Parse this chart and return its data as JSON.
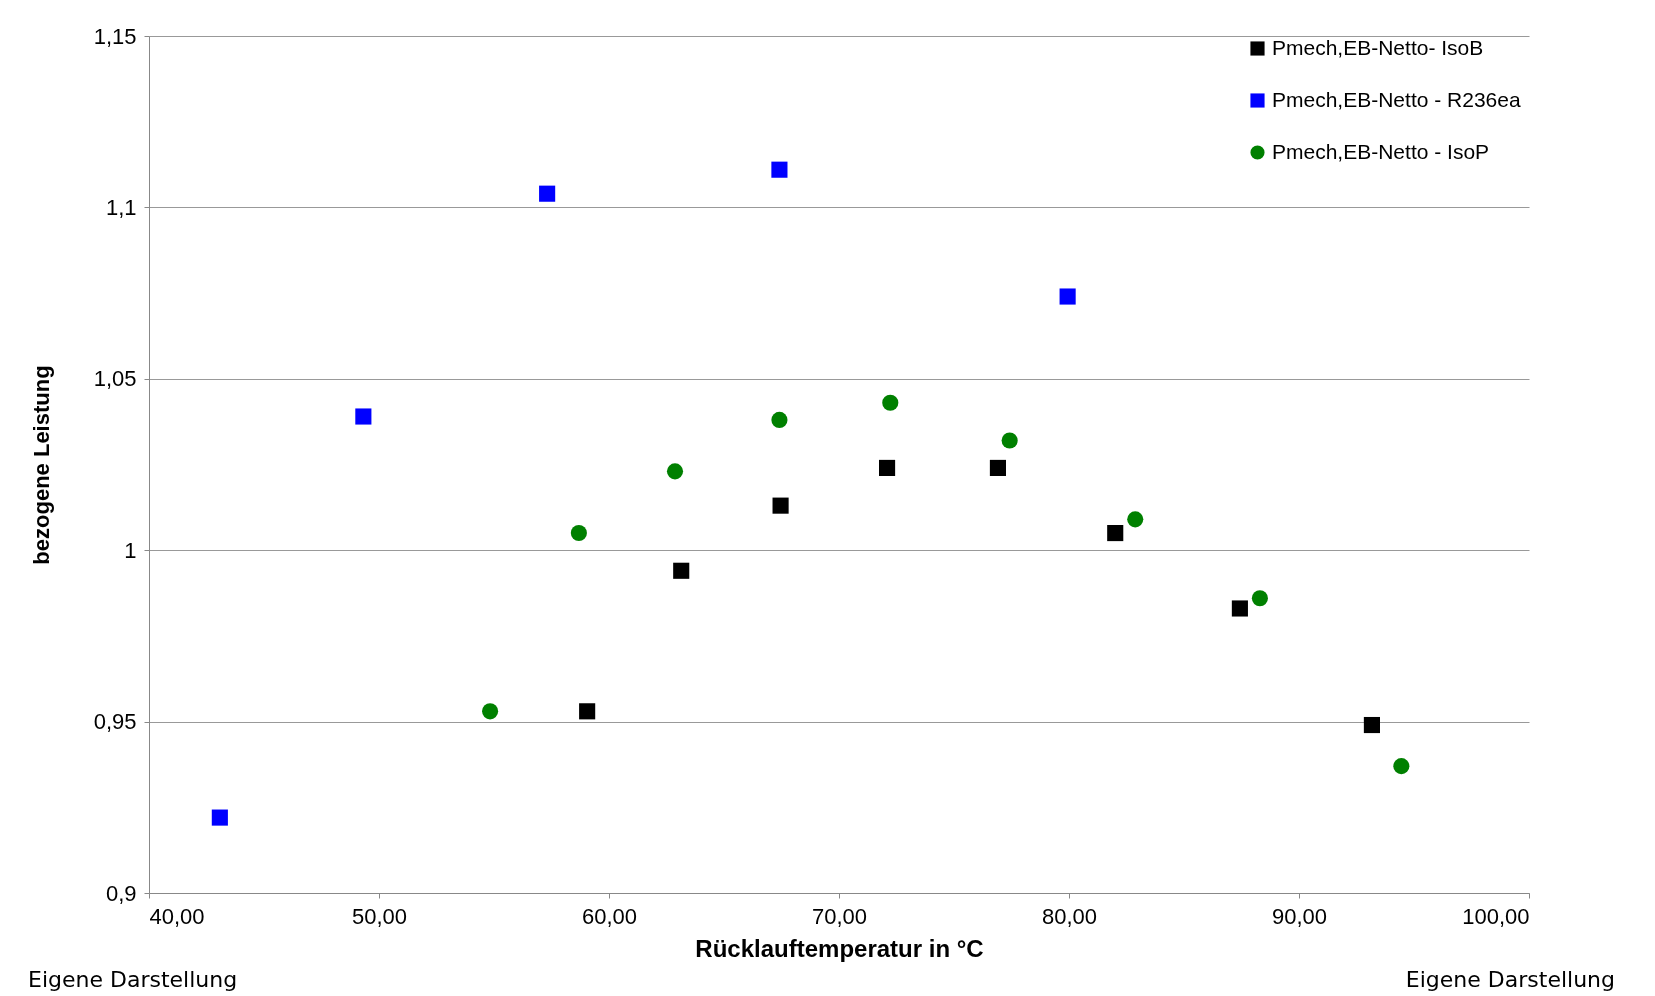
{
  "chart_data": {
    "type": "scatter",
    "xlabel": "Rücklauftemperatur in °C",
    "ylabel": "bezogene Leistung",
    "xlim": [
      40,
      100
    ],
    "xticks": [
      {
        "value": 40,
        "label": "40,00"
      },
      {
        "value": 50,
        "label": "50,00"
      },
      {
        "value": 60,
        "label": "60,00"
      },
      {
        "value": 70,
        "label": "70,00"
      },
      {
        "value": 80,
        "label": "80,00"
      },
      {
        "value": 90,
        "label": "90,00"
      },
      {
        "value": 100,
        "label": "100,00"
      }
    ],
    "ylim": [
      0.9,
      1.15
    ],
    "yticks": [
      {
        "value": 0.9,
        "label": "0,9"
      },
      {
        "value": 0.95,
        "label": "0,95"
      },
      1,
      {
        "value": 1.05,
        "label": "1,05"
      },
      {
        "value": 1.1,
        "label": "1,1"
      },
      {
        "value": 1.15,
        "label": "1,15"
      }
    ],
    "grid": "y",
    "legend": "top right",
    "annotations": [
      "Eigene Darstellung",
      "Eigene Darstellung"
    ],
    "series": [
      {
        "name": "Pmech,EB-Netto- IsoB",
        "color": "#000000",
        "marker": "square",
        "x": [
          59.05,
          63.14,
          67.46,
          72.09,
          76.91,
          82.01,
          87.43,
          93.17
        ],
        "values": [
          0.953,
          0.994,
          1.013,
          1.024,
          1.024,
          1.005,
          0.983,
          0.949
        ]
      },
      {
        "name": "Pmech,EB-Netto  - R236ea",
        "color": "#0000ff",
        "marker": "square",
        "x": [
          43.08,
          49.32,
          57.31,
          67.41,
          79.94
        ],
        "values": [
          0.922,
          1.039,
          1.104,
          1.111,
          1.074
        ]
      },
      {
        "name": "Pmech,EB-Netto - IsoP",
        "color": "#008000",
        "marker": "circle",
        "x": [
          54.83,
          58.69,
          62.87,
          67.41,
          72.23,
          77.42,
          82.88,
          88.3,
          94.45
        ],
        "values": [
          0.953,
          1.005,
          1.023,
          1.038,
          1.043,
          1.032,
          1.009,
          0.986,
          0.937
        ]
      }
    ]
  }
}
